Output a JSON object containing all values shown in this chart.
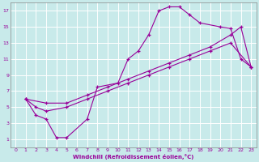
{
  "xlabel": "Windchill (Refroidissement éolien,°C)",
  "bg_color": "#c8eaea",
  "grid_color": "#ffffff",
  "line_color": "#990099",
  "xlim": [
    -0.5,
    23.5
  ],
  "ylim": [
    0,
    18
  ],
  "xticks": [
    0,
    1,
    2,
    3,
    4,
    5,
    6,
    7,
    8,
    9,
    10,
    11,
    12,
    13,
    14,
    15,
    16,
    17,
    18,
    19,
    20,
    21,
    22,
    23
  ],
  "yticks": [
    1,
    3,
    5,
    7,
    9,
    11,
    13,
    15,
    17
  ],
  "line1_x": [
    1,
    2,
    3,
    4,
    5,
    7,
    8,
    10,
    11,
    12,
    13,
    14,
    15,
    16,
    17,
    18,
    20,
    21,
    22,
    23
  ],
  "line1_y": [
    6,
    4,
    3.5,
    1.2,
    1.2,
    3.5,
    7.5,
    8,
    11,
    12,
    14,
    17,
    17.5,
    17.5,
    16.5,
    15.5,
    15,
    14.8,
    11,
    10
  ],
  "line2_x": [
    1,
    2,
    3,
    5,
    7,
    9,
    11,
    13,
    15,
    17,
    19,
    21,
    23
  ],
  "line2_y": [
    6,
    5,
    4.5,
    5,
    6,
    7,
    8,
    9,
    10,
    11,
    12,
    13,
    10
  ],
  "line3_x": [
    1,
    3,
    5,
    7,
    9,
    11,
    13,
    15,
    17,
    19,
    21,
    22,
    23
  ],
  "line3_y": [
    6,
    5.5,
    5.5,
    6.5,
    7.5,
    8.5,
    9.5,
    10.5,
    11.5,
    12.5,
    14,
    15,
    10
  ]
}
